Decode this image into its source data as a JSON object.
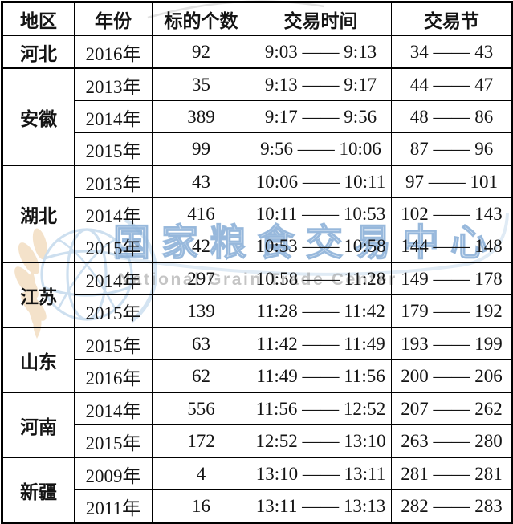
{
  "table": {
    "headers": [
      "地区",
      "年份",
      "标的个数",
      "交易时间",
      "交易节"
    ],
    "groups": [
      {
        "region": "河北",
        "rows": [
          {
            "year": "2016年",
            "count": "92",
            "time": "9:03 —— 9:13",
            "sessions": "34 —— 43"
          }
        ]
      },
      {
        "region": "安徽",
        "rows": [
          {
            "year": "2013年",
            "count": "35",
            "time": "9:13 —— 9:17",
            "sessions": "44 —— 47"
          },
          {
            "year": "2014年",
            "count": "389",
            "time": "9:17 —— 9:56",
            "sessions": "48 —— 86"
          },
          {
            "year": "2015年",
            "count": "99",
            "time": "9:56 —— 10:06",
            "sessions": "87 —— 96"
          }
        ]
      },
      {
        "region": "湖北",
        "rows": [
          {
            "year": "2013年",
            "count": "43",
            "time": "10:06 —— 10:11",
            "sessions": "97 —— 101"
          },
          {
            "year": "2014年",
            "count": "416",
            "time": "10:11 —— 10:53",
            "sessions": "102 —— 143"
          },
          {
            "year": "2015年",
            "count": "42",
            "time": "10:53 —— 10:58",
            "sessions": "144 —— 148"
          }
        ]
      },
      {
        "region": "江苏",
        "rows": [
          {
            "year": "2014年",
            "count": "297",
            "time": "10:58 —— 11:28",
            "sessions": "149 —— 178"
          },
          {
            "year": "2015年",
            "count": "139",
            "time": "11:28 —— 11:42",
            "sessions": "179 —— 192"
          }
        ]
      },
      {
        "region": "山东",
        "rows": [
          {
            "year": "2015年",
            "count": "63",
            "time": "11:42 —— 11:49",
            "sessions": "193 —— 199"
          },
          {
            "year": "2016年",
            "count": "62",
            "time": "11:49 —— 11:56",
            "sessions": "200 —— 206"
          }
        ]
      },
      {
        "region": "河南",
        "rows": [
          {
            "year": "2014年",
            "count": "556",
            "time": "11:56 —— 12:52",
            "sessions": "207 —— 262"
          },
          {
            "year": "2015年",
            "count": "172",
            "time": "12:52 —— 13:10",
            "sessions": "263 —— 280"
          }
        ]
      },
      {
        "region": "新疆",
        "rows": [
          {
            "year": "2009年",
            "count": "4",
            "time": "13:10 —— 13:11",
            "sessions": "281 —— 281"
          },
          {
            "year": "2011年",
            "count": "16",
            "time": "13:11 —— 13:13",
            "sessions": "282 —— 283"
          }
        ]
      }
    ]
  },
  "watermark": {
    "cn_text": "国家粮食交易中心",
    "en_text": "National Grain Trade Center",
    "colors": {
      "globe_blue": "#9cc0e0",
      "leaf_tan": "#e7c18c",
      "cn_text_blue": "#8cb0d7",
      "en_text_gray": "#9e9e9e"
    }
  }
}
